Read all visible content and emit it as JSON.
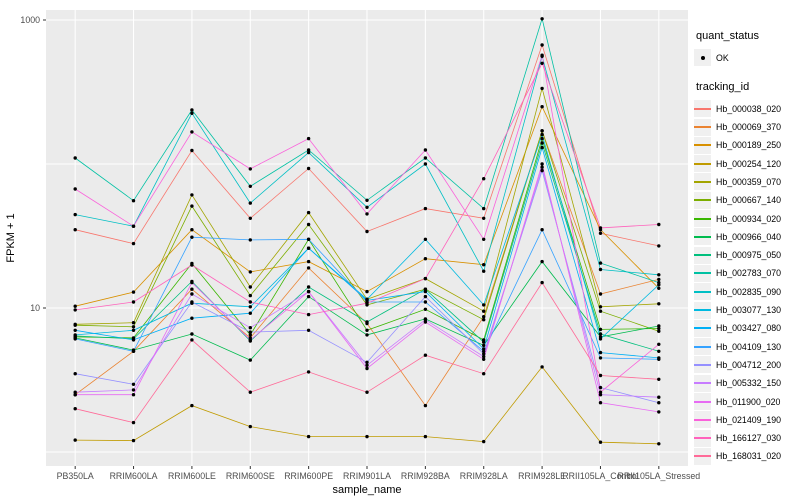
{
  "figure": {
    "background": "#ffffff",
    "panel_background": "#ebebeb",
    "grid_color": "#ffffff",
    "axis_text_color": "#4d4d4d",
    "tick_color": "#333333",
    "point_color": "#000000"
  },
  "axes": {
    "x_title": "sample_name",
    "y_title": "FPKM + 1",
    "y_tick_labels": [
      "1000",
      "10"
    ],
    "y_tick_values": [
      1000,
      10
    ]
  },
  "legend": {
    "quant_title": "quant_status",
    "quant_items": [
      {
        "label": "OK"
      }
    ],
    "tracking_title": "tracking_id"
  },
  "chart_data": {
    "type": "line",
    "xlabel": "sample_name",
    "ylabel": "FPKM + 1",
    "yscale": "log10",
    "ylim": [
      1,
      1050
    ],
    "grid": true,
    "legend_position": "right",
    "point_marker": "black dot on every vertex (quant_status OK)",
    "categories": [
      "PB350LA",
      "RRIM600LA",
      "RRIM600LE",
      "RRIM600SE",
      "RRIM600PE",
      "RRIM901LA",
      "RRIM928BA",
      "RRIM928LA",
      "RRIM928LE",
      "RRII105LA_Control",
      "RRII105LA_Stressed"
    ],
    "series": [
      {
        "name": "Hb_000038_020",
        "color": "#F8766D",
        "values": [
          35,
          28,
          124,
          42,
          93,
          34,
          49,
          42,
          670,
          33,
          27
        ]
      },
      {
        "name": "Hb_000069_370",
        "color": "#EA8331",
        "values": [
          2.5,
          5,
          13.5,
          6.2,
          19,
          7.8,
          2.1,
          8.7,
          170,
          12.5,
          15.8
        ]
      },
      {
        "name": "Hb_000189_250",
        "color": "#D89000",
        "values": [
          10.3,
          12.9,
          35,
          17.8,
          21,
          13,
          22,
          20,
          250,
          35,
          13.7
        ]
      },
      {
        "name": "Hb_000254_120",
        "color": "#C09B00",
        "values": [
          1.21,
          1.2,
          2.1,
          1.5,
          1.28,
          1.28,
          1.28,
          1.18,
          3.9,
          1.17,
          1.14
        ]
      },
      {
        "name": "Hb_000359_070",
        "color": "#A3A500",
        "values": [
          7.7,
          7.9,
          61,
          14,
          46,
          11.5,
          16,
          9.5,
          335,
          10.2,
          10.7
        ]
      },
      {
        "name": "Hb_000667_140",
        "color": "#7CAE00",
        "values": [
          7.6,
          7.4,
          51,
          12.2,
          38,
          10.5,
          13.5,
          8.3,
          170,
          9.5,
          6.9
        ]
      },
      {
        "name": "Hb_000934_020",
        "color": "#39B600",
        "values": [
          6.3,
          6.2,
          20.4,
          6.5,
          30,
          7,
          9.8,
          6,
          150,
          7.1,
          7.2
        ]
      },
      {
        "name": "Hb_000966_040",
        "color": "#00BB4E",
        "values": [
          6.2,
          5.1,
          6.6,
          4.35,
          12,
          6.5,
          8.4,
          5.5,
          21,
          6.3,
          7.5
        ]
      },
      {
        "name": "Hb_000975_050",
        "color": "#00BF7D",
        "values": [
          6.4,
          6.1,
          15.3,
          5.9,
          14,
          8,
          13.5,
          5.8,
          140,
          6.6,
          5.0
        ]
      },
      {
        "name": "Hb_002783_070",
        "color": "#00C1A3",
        "values": [
          110,
          55.6,
          237,
          70,
          125,
          56,
          110,
          49,
          1020,
          20.5,
          15
        ]
      },
      {
        "name": "Hb_002835_090",
        "color": "#00BFC4",
        "values": [
          44.5,
          37,
          225,
          53.5,
          120,
          50,
          100,
          18,
          560,
          18.5,
          17
        ]
      },
      {
        "name": "Hb_003077_130",
        "color": "#00BAE0",
        "values": [
          6.5,
          7,
          10.8,
          10.2,
          26,
          11.5,
          30,
          10.5,
          160,
          6.1,
          14.5
        ]
      },
      {
        "name": "Hb_003427_080",
        "color": "#00B0F6",
        "values": [
          7,
          6,
          8.5,
          9.2,
          26,
          11.3,
          13,
          5.2,
          130,
          4.9,
          4.5
        ]
      },
      {
        "name": "Hb_004109_130",
        "color": "#35A2FF",
        "values": [
          6.1,
          5.0,
          31,
          29.7,
          30,
          11,
          11,
          5,
          35,
          4.5,
          4.4
        ]
      },
      {
        "name": "Hb_004712_200",
        "color": "#9590FF",
        "values": [
          3.5,
          2.95,
          11,
          6.8,
          7,
          4.2,
          12,
          4.8,
          90,
          2.8,
          2.2
        ]
      },
      {
        "name": "Hb_005332_150",
        "color": "#C77CFF",
        "values": [
          2.6,
          2.7,
          12.5,
          7.3,
          13,
          4,
          8.3,
          4.6,
          95,
          2.5,
          2.4
        ]
      },
      {
        "name": "Hb_011900_020",
        "color": "#E76BF3",
        "values": [
          2.5,
          2.5,
          15,
          6,
          13,
          3.8,
          8,
          4.4,
          100,
          2.2,
          1.9
        ]
      },
      {
        "name": "Hb_021409_190",
        "color": "#FA62DB",
        "values": [
          67,
          37,
          167,
          92.5,
          150,
          45,
          125,
          30,
          570,
          2.6,
          5.6
        ]
      },
      {
        "name": "Hb_166127_030",
        "color": "#FF62BC",
        "values": [
          9.7,
          11,
          19.9,
          11,
          9,
          10.8,
          16,
          79,
          500,
          36,
          38
        ]
      },
      {
        "name": "Hb_168031_020",
        "color": "#FF6A98",
        "values": [
          2.0,
          1.6,
          6,
          2.6,
          3.6,
          2.6,
          4.7,
          3.5,
          15,
          3.4,
          3.2
        ]
      }
    ]
  }
}
